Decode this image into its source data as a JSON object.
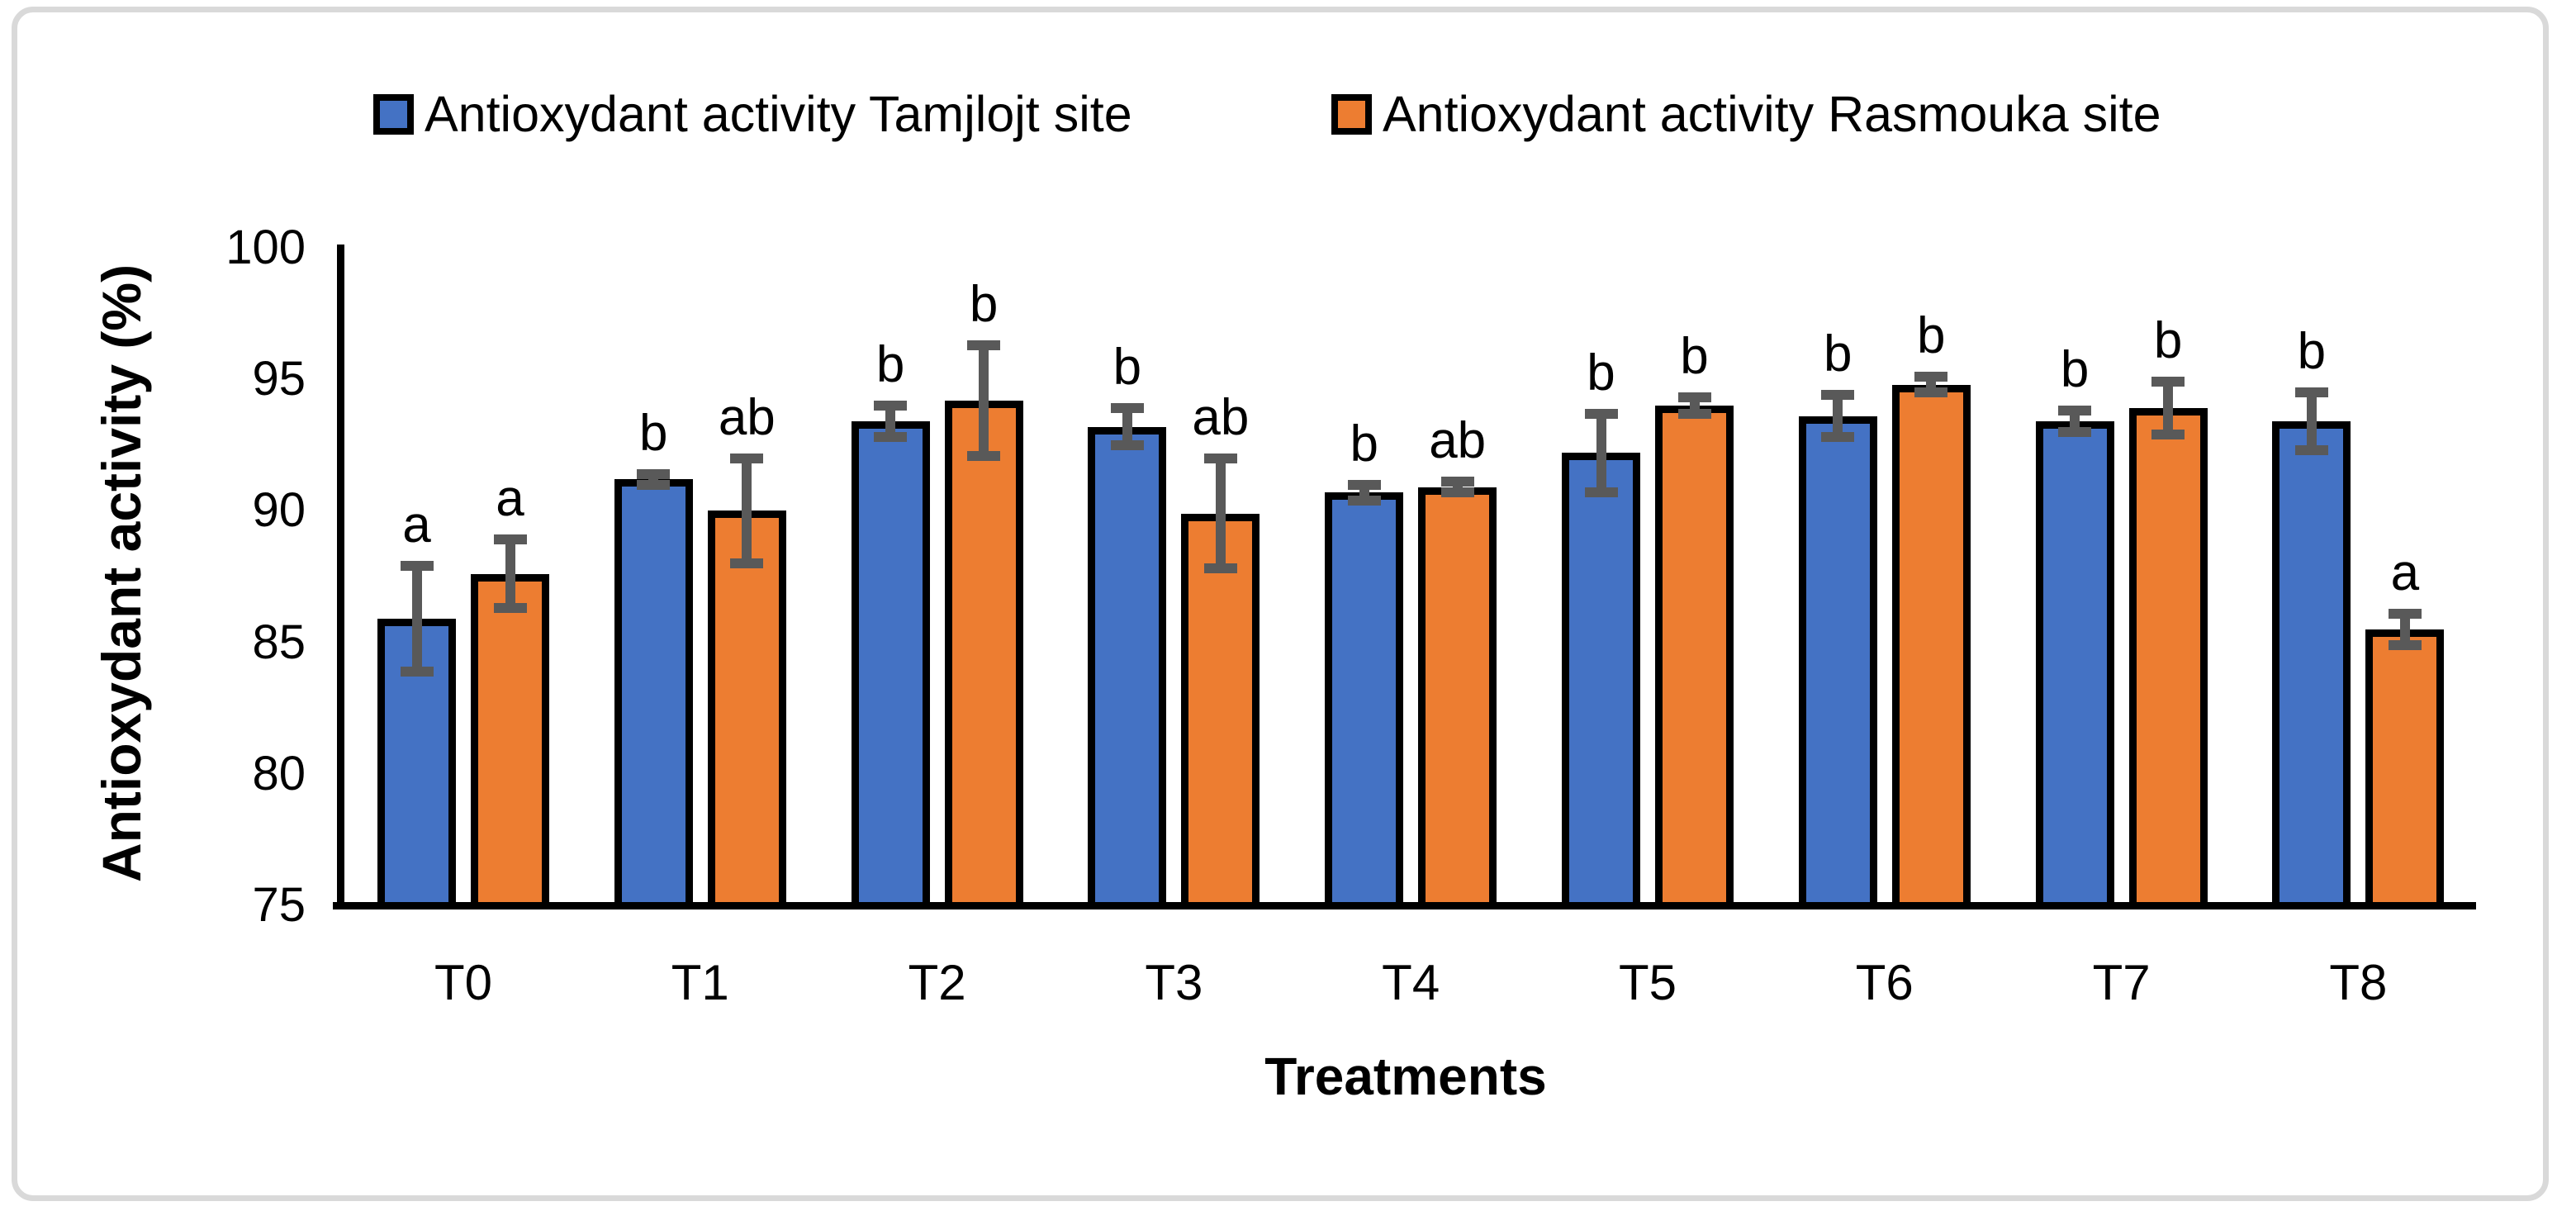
{
  "figure": {
    "background": "#ffffff",
    "border_color": "#d9d9d9"
  },
  "chart_data": {
    "type": "bar",
    "title": "",
    "xlabel": "Treatments",
    "ylabel": "Antioxydant activity (%)",
    "ylim": [
      75,
      100
    ],
    "yticks": [
      75,
      80,
      85,
      90,
      95,
      100
    ],
    "grid": false,
    "legend_position": "top",
    "categories": [
      "T0",
      "T1",
      "T2",
      "T3",
      "T4",
      "T5",
      "T6",
      "T7",
      "T8"
    ],
    "series": [
      {
        "name": "Antioxydant activity Tamjlojt site",
        "color": "#4472C4",
        "values": [
          85.9,
          91.2,
          93.4,
          93.2,
          90.7,
          92.2,
          93.6,
          93.4,
          93.4
        ],
        "errors": [
          2.0,
          0.2,
          0.6,
          0.7,
          0.3,
          1.5,
          0.8,
          0.4,
          1.1
        ],
        "sig_letters": [
          "a",
          "b",
          "b",
          "b",
          "b",
          "b",
          "b",
          "b",
          "b"
        ]
      },
      {
        "name": "Antioxydant activity Rasmouka site",
        "color": "#ED7D31",
        "values": [
          87.6,
          90.0,
          94.2,
          89.9,
          90.9,
          94.0,
          94.8,
          93.9,
          85.5
        ],
        "errors": [
          1.3,
          2.0,
          2.1,
          2.1,
          0.2,
          0.3,
          0.3,
          1.0,
          0.6
        ],
        "sig_letters": [
          "a",
          "ab",
          "b",
          "ab",
          "ab",
          "b",
          "b",
          "b",
          "a"
        ]
      }
    ],
    "error_bar_color": "#595959",
    "bar_border_color": "#000000",
    "axis_color": "#000000"
  }
}
